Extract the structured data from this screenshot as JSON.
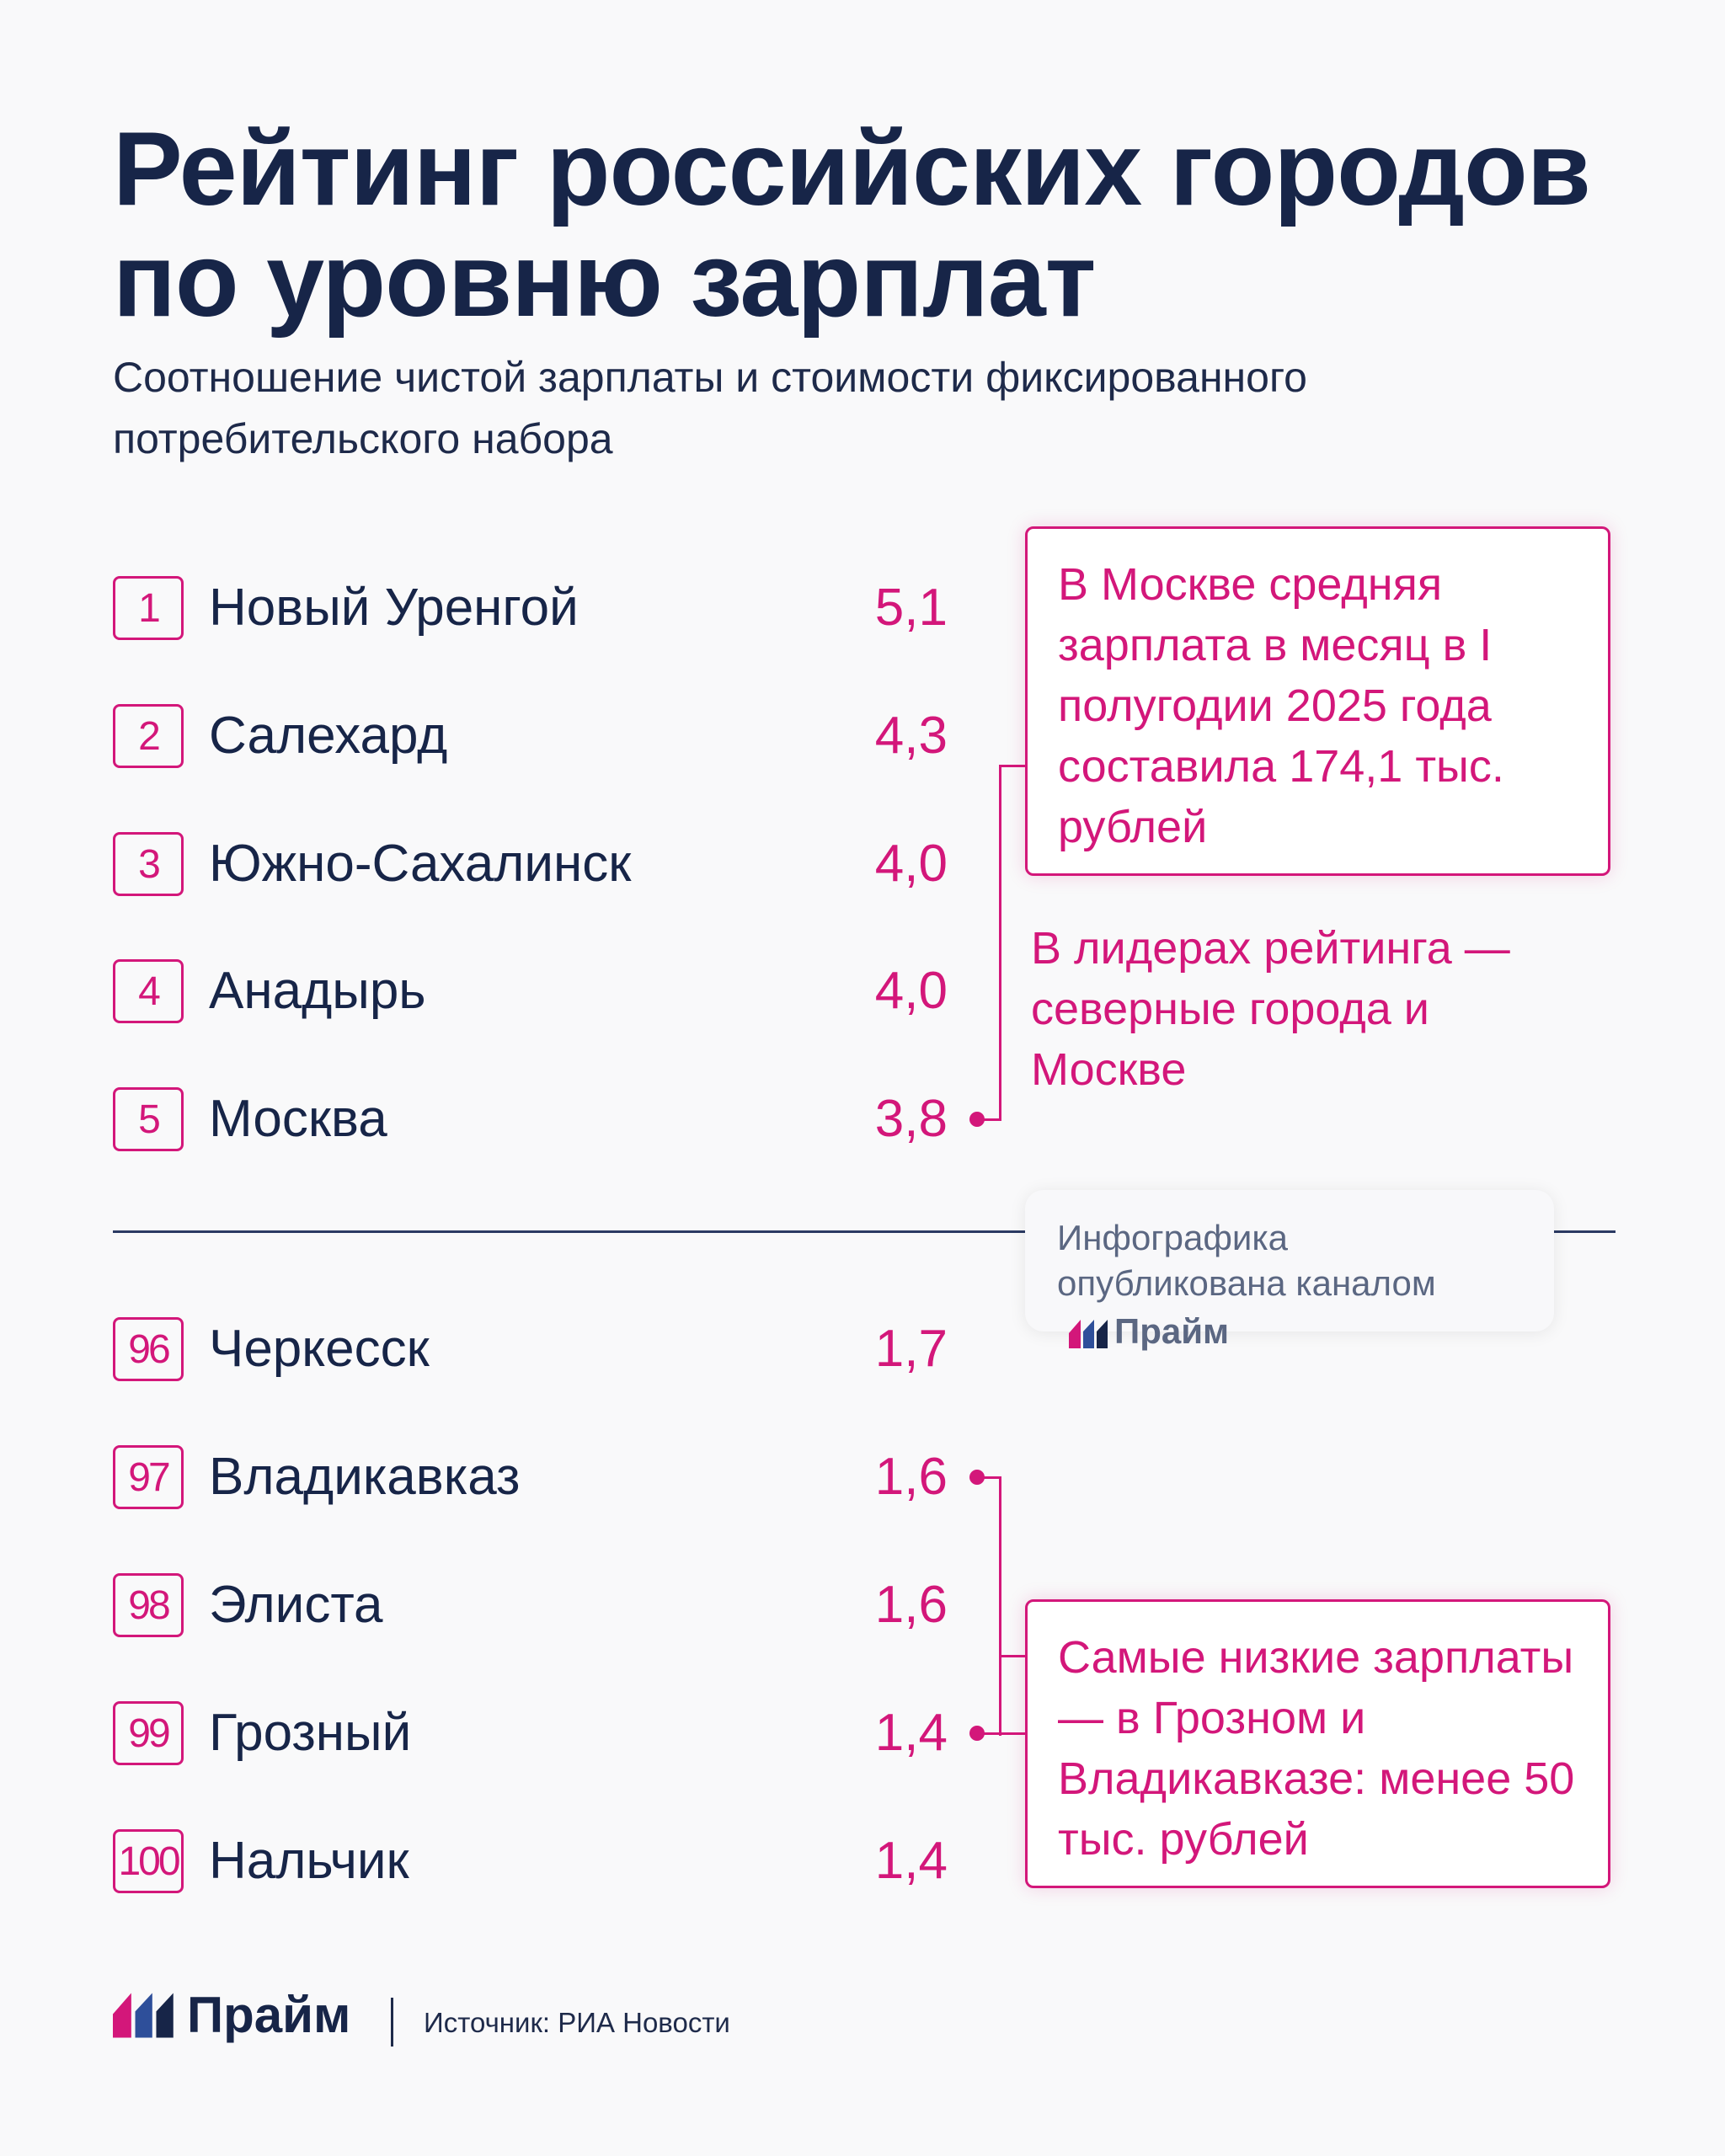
{
  "title": "Рейтинг российских городов по уровню зарплат",
  "subtitle": "Соотношение чистой зарплаты и стоимости фиксированного потребительского набора",
  "top": [
    {
      "rank": "1",
      "city": "Новый Уренгой",
      "value": "5,1"
    },
    {
      "rank": "2",
      "city": "Салехард",
      "value": "4,3"
    },
    {
      "rank": "3",
      "city": "Южно-Сахалинск",
      "value": "4,0"
    },
    {
      "rank": "4",
      "city": "Анадырь",
      "value": "4,0"
    },
    {
      "rank": "5",
      "city": "Москва",
      "value": "3,8"
    }
  ],
  "bottom": [
    {
      "rank": "96",
      "city": "Черкесск",
      "value": "1,7"
    },
    {
      "rank": "97",
      "city": "Владикавказ",
      "value": "1,6"
    },
    {
      "rank": "98",
      "city": "Элиста",
      "value": "1,6"
    },
    {
      "rank": "99",
      "city": "Грозный",
      "value": "1,4"
    },
    {
      "rank": "100",
      "city": "Нальчик",
      "value": "1,4"
    }
  ],
  "callouts": {
    "moscow": "В Москве средняя зарплата в месяц в I полугодии 2025 года составила 174,1 тыс. рублей",
    "leaders": "В лидерах рейтинга — северные города и Москве",
    "lowest": "Самые низкие зарплаты — в Грозном и Владикавказе: менее 50 тыс. рублей"
  },
  "badge": {
    "text": "Инфографика опубликована каналом",
    "brand": "Прайм"
  },
  "footer": {
    "brand": "Прайм",
    "source": "Источник: РИА Новости"
  },
  "colors": {
    "accent": "#d3177a",
    "navy": "#172548",
    "logo_blue": "#2e4f9a"
  }
}
